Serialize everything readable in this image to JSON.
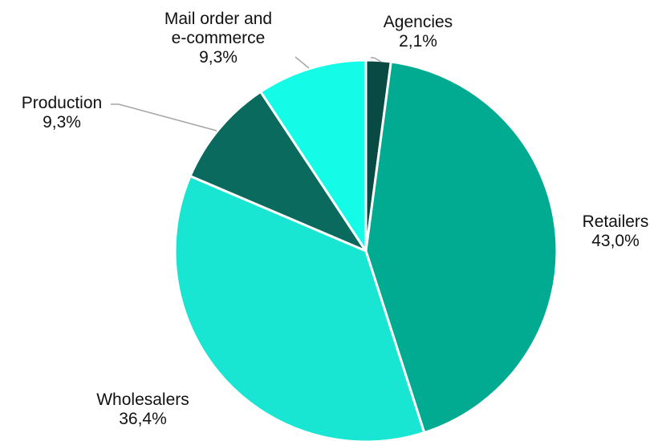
{
  "chart_data": {
    "type": "pie",
    "title": "",
    "start_angle_deg": 0,
    "direction": "clockwise",
    "legend": "none",
    "slices": [
      {
        "label_lines": [
          "Agencies"
        ],
        "value": 2.1,
        "value_label": "2,1%",
        "color": "#0a4a45"
      },
      {
        "label_lines": [
          "Retailers"
        ],
        "value": 43.0,
        "value_label": "43,0%",
        "color": "#00ab91"
      },
      {
        "label_lines": [
          "Wholesalers"
        ],
        "value": 36.4,
        "value_label": "36,4%",
        "color": "#19e6d2"
      },
      {
        "label_lines": [
          "Production"
        ],
        "value": 9.3,
        "value_label": "9,3%",
        "color": "#0b6a5e"
      },
      {
        "label_lines": [
          "Mail order and",
          "e-commerce"
        ],
        "value": 9.3,
        "value_label": "9,3%",
        "color": "#14fbe8"
      }
    ]
  }
}
